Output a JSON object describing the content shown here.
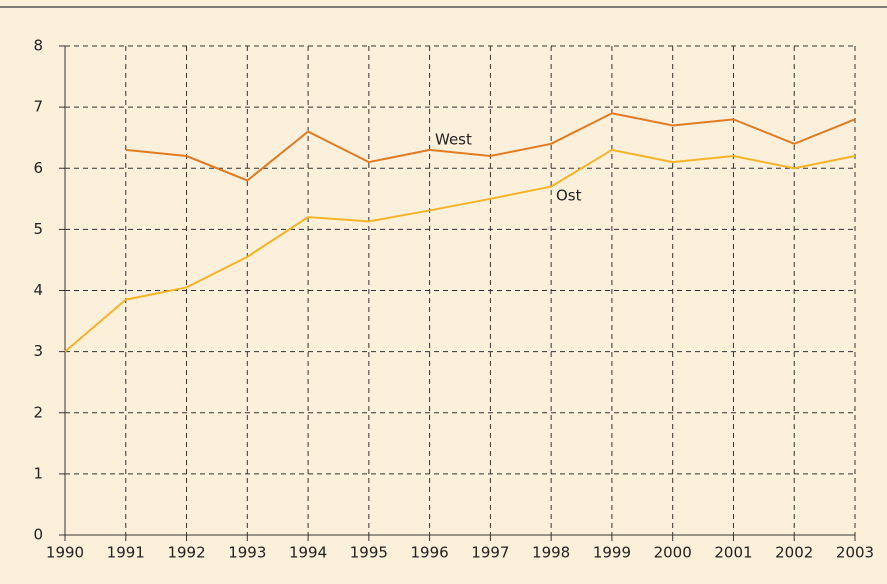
{
  "chart_data": {
    "type": "line",
    "x": [
      1990,
      1991,
      1992,
      1993,
      1994,
      1995,
      1996,
      1997,
      1998,
      1999,
      2000,
      2001,
      2002,
      2003
    ],
    "series": [
      {
        "name": "West",
        "color": "#e07b22",
        "values": [
          null,
          6.3,
          6.2,
          5.8,
          6.6,
          6.1,
          6.3,
          6.2,
          6.4,
          6.9,
          6.7,
          6.8,
          6.4,
          6.8
        ]
      },
      {
        "name": "Ost",
        "color": "#f6b326",
        "values": [
          3.0,
          3.85,
          4.05,
          4.55,
          5.2,
          5.13,
          5.31,
          5.5,
          5.7,
          6.3,
          6.1,
          6.2,
          6.0,
          6.2
        ]
      }
    ],
    "xlim": [
      1990,
      2003
    ],
    "xticks": [
      1990,
      1991,
      1992,
      1993,
      1994,
      1995,
      1996,
      1997,
      1998,
      1999,
      2000,
      2001,
      2002,
      2003
    ],
    "ylim": [
      0,
      8
    ],
    "yticks": [
      0,
      1,
      2,
      3,
      4,
      5,
      6,
      7,
      8
    ],
    "grid": true
  }
}
